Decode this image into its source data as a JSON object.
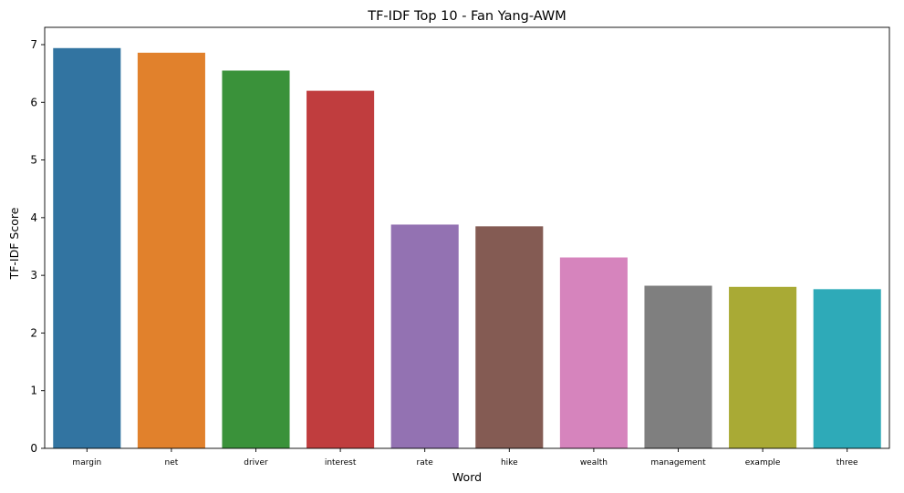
{
  "chart_data": {
    "type": "bar",
    "title": "TF-IDF Top 10 - Fan Yang-AWM",
    "xlabel": "Word",
    "ylabel": "TF-IDF Score",
    "categories": [
      "margin",
      "net",
      "driver",
      "interest",
      "rate",
      "hike",
      "wealth",
      "management",
      "example",
      "three"
    ],
    "values": [
      6.94,
      6.86,
      6.55,
      6.2,
      3.88,
      3.85,
      3.31,
      2.82,
      2.8,
      2.76
    ],
    "colors": [
      "#3274a1",
      "#e1812c",
      "#3a923a",
      "#c03d3e",
      "#9372b2",
      "#845b53",
      "#d684bd",
      "#7f7f7f",
      "#a9aa35",
      "#2eaab8"
    ],
    "ylim": [
      0,
      7.3
    ],
    "yticks": [
      0,
      1,
      2,
      3,
      4,
      5,
      6,
      7
    ],
    "grid": false,
    "legend": "none"
  }
}
